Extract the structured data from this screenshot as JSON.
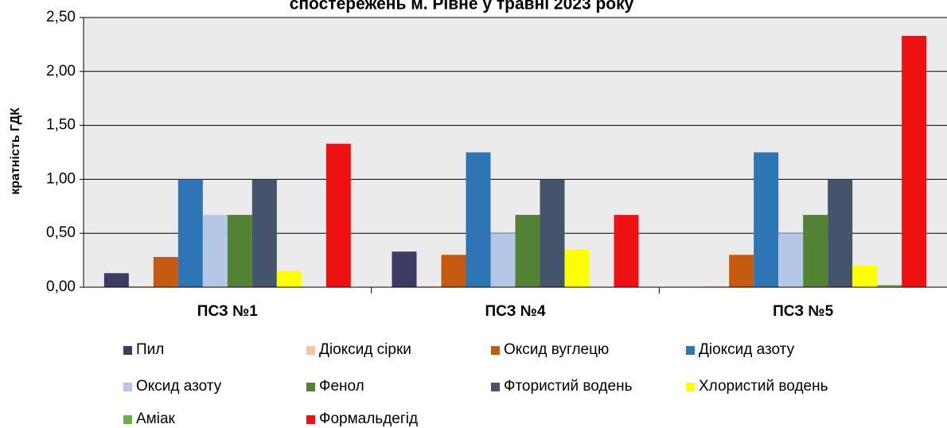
{
  "chart_data": {
    "type": "bar",
    "title": "спостережень м. Рівне у травні 2023 року",
    "y_label": "кратність  ГДК",
    "categories": [
      "ПСЗ №1",
      "ПСЗ №4",
      "ПСЗ №5"
    ],
    "series": [
      {
        "name": "Пил",
        "color": "#3b3b63",
        "values": [
          0.13,
          0.33,
          0
        ]
      },
      {
        "name": "Діоксид сірки",
        "color": "#f8c4a2",
        "values": [
          0.01,
          0.01,
          0.01
        ]
      },
      {
        "name": "Оксид вуглецю",
        "color": "#c55a11",
        "values": [
          0.28,
          0.3,
          0.3
        ]
      },
      {
        "name": "Діоксид азоту",
        "color": "#2e75b6",
        "values": [
          1.0,
          1.25,
          1.25
        ]
      },
      {
        "name": "Оксид азоту",
        "color": "#b4c7e7",
        "values": [
          0.67,
          0.5,
          0.5
        ]
      },
      {
        "name": "Фенол",
        "color": "#548235",
        "values": [
          0.67,
          0.67,
          0.67
        ]
      },
      {
        "name": "Фтористий водень",
        "color": "#44546a",
        "values": [
          1.0,
          1.0,
          1.0
        ]
      },
      {
        "name": "Хлористий водень",
        "color": "#ffff00",
        "values": [
          0.15,
          0.35,
          0.2
        ]
      },
      {
        "name": "Аміак",
        "color": "#70ad47",
        "values": [
          0,
          0,
          0.02
        ]
      },
      {
        "name": "Формальдегід",
        "color": "#ee1111",
        "values": [
          1.33,
          0.67,
          2.33
        ]
      }
    ],
    "ylim": [
      0,
      2.5
    ],
    "yticks": [
      {
        "value": 0,
        "label": "0,00"
      },
      {
        "value": 0.5,
        "label": "0,50"
      },
      {
        "value": 1,
        "label": "1,00"
      },
      {
        "value": 1.5,
        "label": "1,50"
      },
      {
        "value": 2,
        "label": "2,00"
      },
      {
        "value": 2.5,
        "label": "2,50"
      }
    ],
    "grid": true,
    "legend": "bottom"
  }
}
